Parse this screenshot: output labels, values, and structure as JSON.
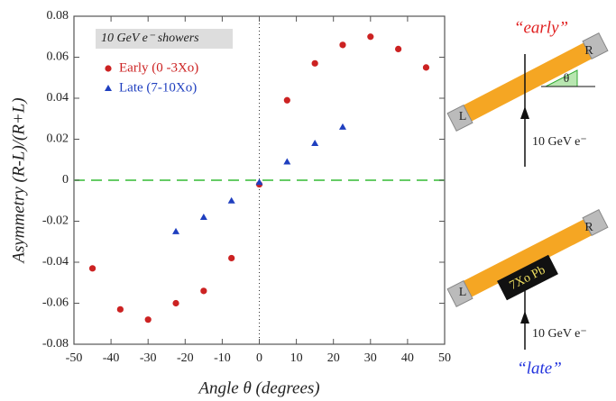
{
  "chart_data": {
    "type": "scatter",
    "title": "10 GeV e⁻ showers",
    "x_label": "Angle θ (degrees)",
    "y_label": "Asymmetry (R-L)/(R+L)",
    "xlim": [
      -50,
      50
    ],
    "xticks": [
      -50,
      -40,
      -30,
      -20,
      -10,
      0,
      10,
      20,
      30,
      40,
      50
    ],
    "ylim": [
      -0.08,
      0.08
    ],
    "yticks": [
      0.08,
      0.06,
      0.04,
      0.02,
      0,
      -0.02,
      -0.04,
      -0.06,
      -0.08
    ],
    "legend": "upper left",
    "series": [
      {
        "name": "Early (0 -3Xo)",
        "color": "#cc2222",
        "marker": "circle",
        "x": [
          -45,
          -37.5,
          -30,
          -22.5,
          -15,
          -7.5,
          0,
          7.5,
          15,
          22.5,
          30,
          37.5,
          45
        ],
        "values": [
          -0.043,
          -0.063,
          -0.068,
          -0.06,
          -0.054,
          -0.038,
          -0.002,
          0.039,
          0.057,
          0.066,
          0.07,
          0.064,
          0.055
        ]
      },
      {
        "name": "Late (7-10Xo)",
        "color": "#1f3fbf",
        "marker": "triangle",
        "x": [
          -22.5,
          -15,
          -7.5,
          0,
          7.5,
          15,
          22.5
        ],
        "values": [
          -0.025,
          -0.018,
          -0.01,
          -0.001,
          0.009,
          0.018,
          0.026
        ]
      }
    ]
  },
  "diagram": {
    "top": {
      "caption": "“early”",
      "right": "R",
      "left": "L",
      "angle": "θ",
      "beam": "10 GeV e⁻"
    },
    "bottom": {
      "caption": "“late”",
      "right": "R",
      "left": "L",
      "absorber": "7Xo Pb",
      "beam": "10 GeV e⁻"
    }
  }
}
